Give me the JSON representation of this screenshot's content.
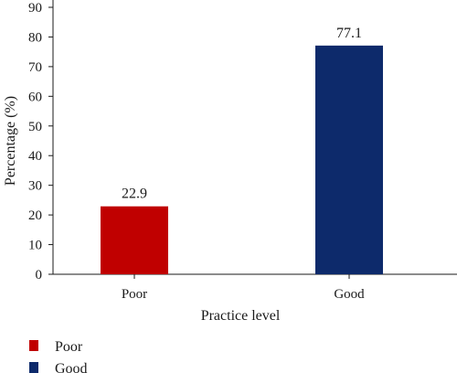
{
  "chart_data": {
    "type": "bar",
    "categories": [
      "Poor",
      "Good"
    ],
    "values": [
      22.9,
      77.1
    ],
    "data_labels": [
      "22.9",
      "77.1"
    ],
    "colors": [
      "#c00000",
      "#0d2a6b"
    ],
    "xlabel": "Practice level",
    "ylabel": "Percentage (%)",
    "ylim": [
      0,
      90
    ],
    "yticks": [
      "0",
      "10",
      "20",
      "30",
      "40",
      "50",
      "60",
      "70",
      "80",
      "90"
    ],
    "grid": false,
    "legend": {
      "placement": "bottom-left",
      "entries": [
        {
          "label": "Poor",
          "color": "#c00000"
        },
        {
          "label": "Good",
          "color": "#0d2a6b"
        }
      ]
    }
  }
}
